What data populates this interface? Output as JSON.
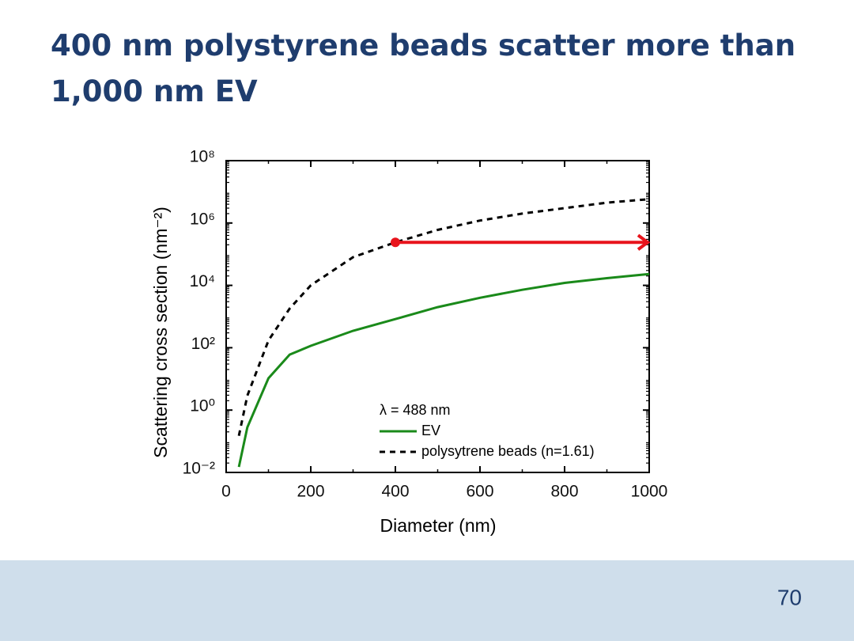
{
  "slide": {
    "title_lines": [
      "400 nm polystyrene beads scatter more than",
      "1,000 nm EV"
    ],
    "page_number": "70"
  },
  "chart_data": {
    "type": "line",
    "x_label": "Diameter (nm)",
    "y_label": "Scattering cross section (nm⁻²)",
    "legend_title": "λ = 488 nm",
    "x": [
      30,
      50,
      100,
      150,
      200,
      300,
      400,
      500,
      600,
      700,
      800,
      900,
      1000
    ],
    "series": [
      {
        "name": "EV",
        "color": "#1a8a1a",
        "dash": false,
        "values": [
          0.015,
          0.28,
          10.5,
          60,
          115,
          350,
          830,
          2000,
          4000,
          7200,
          12000,
          17000,
          23000
        ]
      },
      {
        "name": "polysytrene beads (n=1.61)",
        "color": "#000000",
        "dash": true,
        "values": [
          0.15,
          2.9,
          170,
          1800,
          10000,
          80000,
          240000,
          600000,
          1200000,
          2000000,
          3000000,
          4500000,
          5800000
        ]
      }
    ],
    "arrow": {
      "x": [
        400,
        1000
      ],
      "y": 240000,
      "color": "#e8141c"
    },
    "xlim": [
      0,
      1000
    ],
    "xticks": [
      0,
      200,
      400,
      600,
      800,
      1000
    ],
    "ylim": [
      0.01,
      100000000
    ],
    "yscale": "log",
    "yticks": [
      {
        "value": 0.01,
        "label": "10⁻²"
      },
      {
        "value": 1,
        "label": "10⁰"
      },
      {
        "value": 100,
        "label": "10²"
      },
      {
        "value": 10000,
        "label": "10⁴"
      },
      {
        "value": 1000000,
        "label": "10⁶"
      },
      {
        "value": 100000000,
        "label": "10⁸"
      }
    ]
  }
}
